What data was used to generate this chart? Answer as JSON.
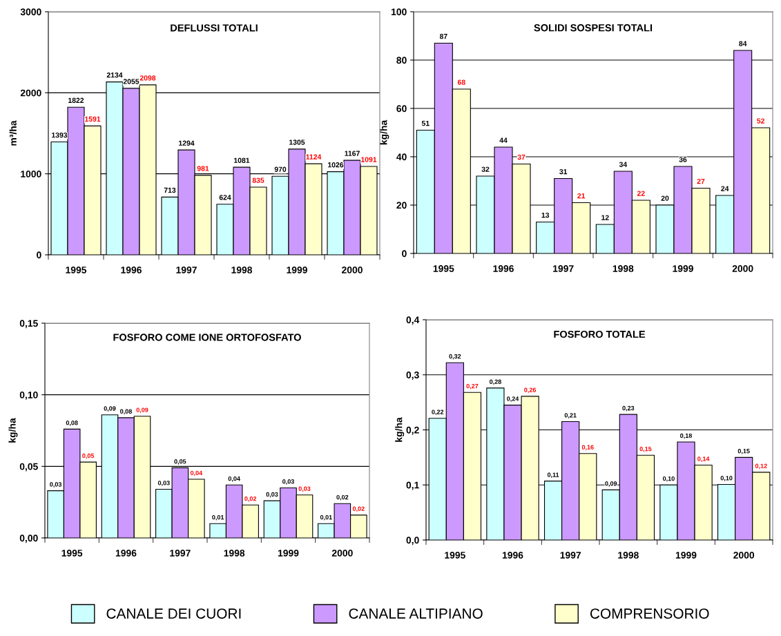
{
  "chart_data": [
    {
      "type": "bar",
      "title": "DEFLUSSI TOTALI",
      "ylabel": "m³/ha",
      "categories": [
        "1995",
        "1996",
        "1997",
        "1998",
        "1999",
        "2000"
      ],
      "ylim": [
        0,
        3000
      ],
      "yticks": [
        0,
        1000,
        2000,
        3000
      ],
      "grid": "y",
      "legend": "bottom",
      "data_labels": true,
      "series": [
        {
          "name": "CANALE DEI CUORI",
          "color": "#ccffff",
          "values": [
            1393,
            2134,
            713,
            624,
            970,
            1026
          ]
        },
        {
          "name": "CANALE ALTIPIANO",
          "color": "#cc99ff",
          "values": [
            1822,
            2055,
            1294,
            1081,
            1305,
            1167
          ]
        },
        {
          "name": "COMPRENSORIO",
          "color": "#ffffcc",
          "values": [
            1591,
            2098,
            981,
            835,
            1124,
            1091
          ]
        }
      ]
    },
    {
      "type": "bar",
      "title": "SOLIDI SOSPESI TOTALI",
      "ylabel": "kg/ha",
      "categories": [
        "1995",
        "1996",
        "1997",
        "1998",
        "1999",
        "2000"
      ],
      "ylim": [
        0,
        100
      ],
      "yticks": [
        0,
        20,
        40,
        60,
        80,
        100
      ],
      "grid": "y",
      "data_labels": true,
      "series": [
        {
          "color": "#ccffff",
          "values": [
            51,
            32,
            13,
            12,
            20,
            24
          ]
        },
        {
          "color": "#cc99ff",
          "values": [
            87,
            44,
            31,
            34,
            36,
            84
          ]
        },
        {
          "color": "#ffffcc",
          "values": [
            68,
            37,
            21,
            22,
            27,
            52
          ]
        }
      ]
    },
    {
      "type": "bar",
      "title": "FOSFORO COME IONE ORTOFOSFATO",
      "ylabel": "kg/ha",
      "categories": [
        "1995",
        "1996",
        "1997",
        "1998",
        "1999",
        "2000"
      ],
      "ylim": [
        0,
        0.15
      ],
      "yticks": [
        {
          "value": 0,
          "label": "0,00"
        },
        {
          "value": 0.05,
          "label": "0,05"
        },
        {
          "value": 0.1,
          "label": "0,10"
        },
        {
          "value": 0.15,
          "label": "0,15"
        }
      ],
      "grid": "y",
      "series": [
        {
          "color": "#ccffff",
          "values": [
            0.033,
            0.086,
            0.034,
            0.01,
            0.026,
            0.01
          ],
          "value_labels": [
            "0,03",
            "0,09",
            "0,03",
            "0,01",
            "0,03",
            "0,01"
          ]
        },
        {
          "color": "#cc99ff",
          "values": [
            0.076,
            0.084,
            0.049,
            0.037,
            0.035,
            0.024
          ],
          "value_labels": [
            "0,08",
            "0,08",
            "0,05",
            "0,04",
            "0,03",
            "0,02"
          ]
        },
        {
          "color": "#ffffcc",
          "values": [
            0.053,
            0.085,
            0.041,
            0.023,
            0.03,
            0.016
          ],
          "value_labels": [
            "0,05",
            "0,09",
            "0,04",
            "0,02",
            "0,03",
            "0,02"
          ]
        }
      ]
    },
    {
      "type": "bar",
      "title": "FOSFORO TOTALE",
      "ylabel": "kg/ha",
      "categories": [
        "1995",
        "1996",
        "1997",
        "1998",
        "1999",
        "2000"
      ],
      "ylim": [
        0,
        0.4
      ],
      "yticks": [
        {
          "value": 0,
          "label": "0,0"
        },
        {
          "value": 0.1,
          "label": "0,1"
        },
        {
          "value": 0.2,
          "label": "0,2"
        },
        {
          "value": 0.3,
          "label": "0,3"
        },
        {
          "value": 0.4,
          "label": "0,4"
        }
      ],
      "grid": "y",
      "series": [
        {
          "color": "#ccffff",
          "values": [
            0.221,
            0.276,
            0.107,
            0.091,
            0.1,
            0.101
          ],
          "value_labels": [
            "0,22",
            "0,28",
            "0,11",
            "0,09",
            "0,10",
            "0,10"
          ]
        },
        {
          "color": "#cc99ff",
          "values": [
            0.322,
            0.245,
            0.215,
            0.228,
            0.178,
            0.15
          ],
          "value_labels": [
            "0,32",
            "0,24",
            "0,21",
            "0,23",
            "0,18",
            "0,15"
          ]
        },
        {
          "color": "#ffffcc",
          "values": [
            0.268,
            0.261,
            0.157,
            0.154,
            0.136,
            0.123
          ],
          "value_labels": [
            "0,27",
            "0,26",
            "0,16",
            "0,15",
            "0,14",
            "0,12"
          ]
        }
      ]
    }
  ]
}
